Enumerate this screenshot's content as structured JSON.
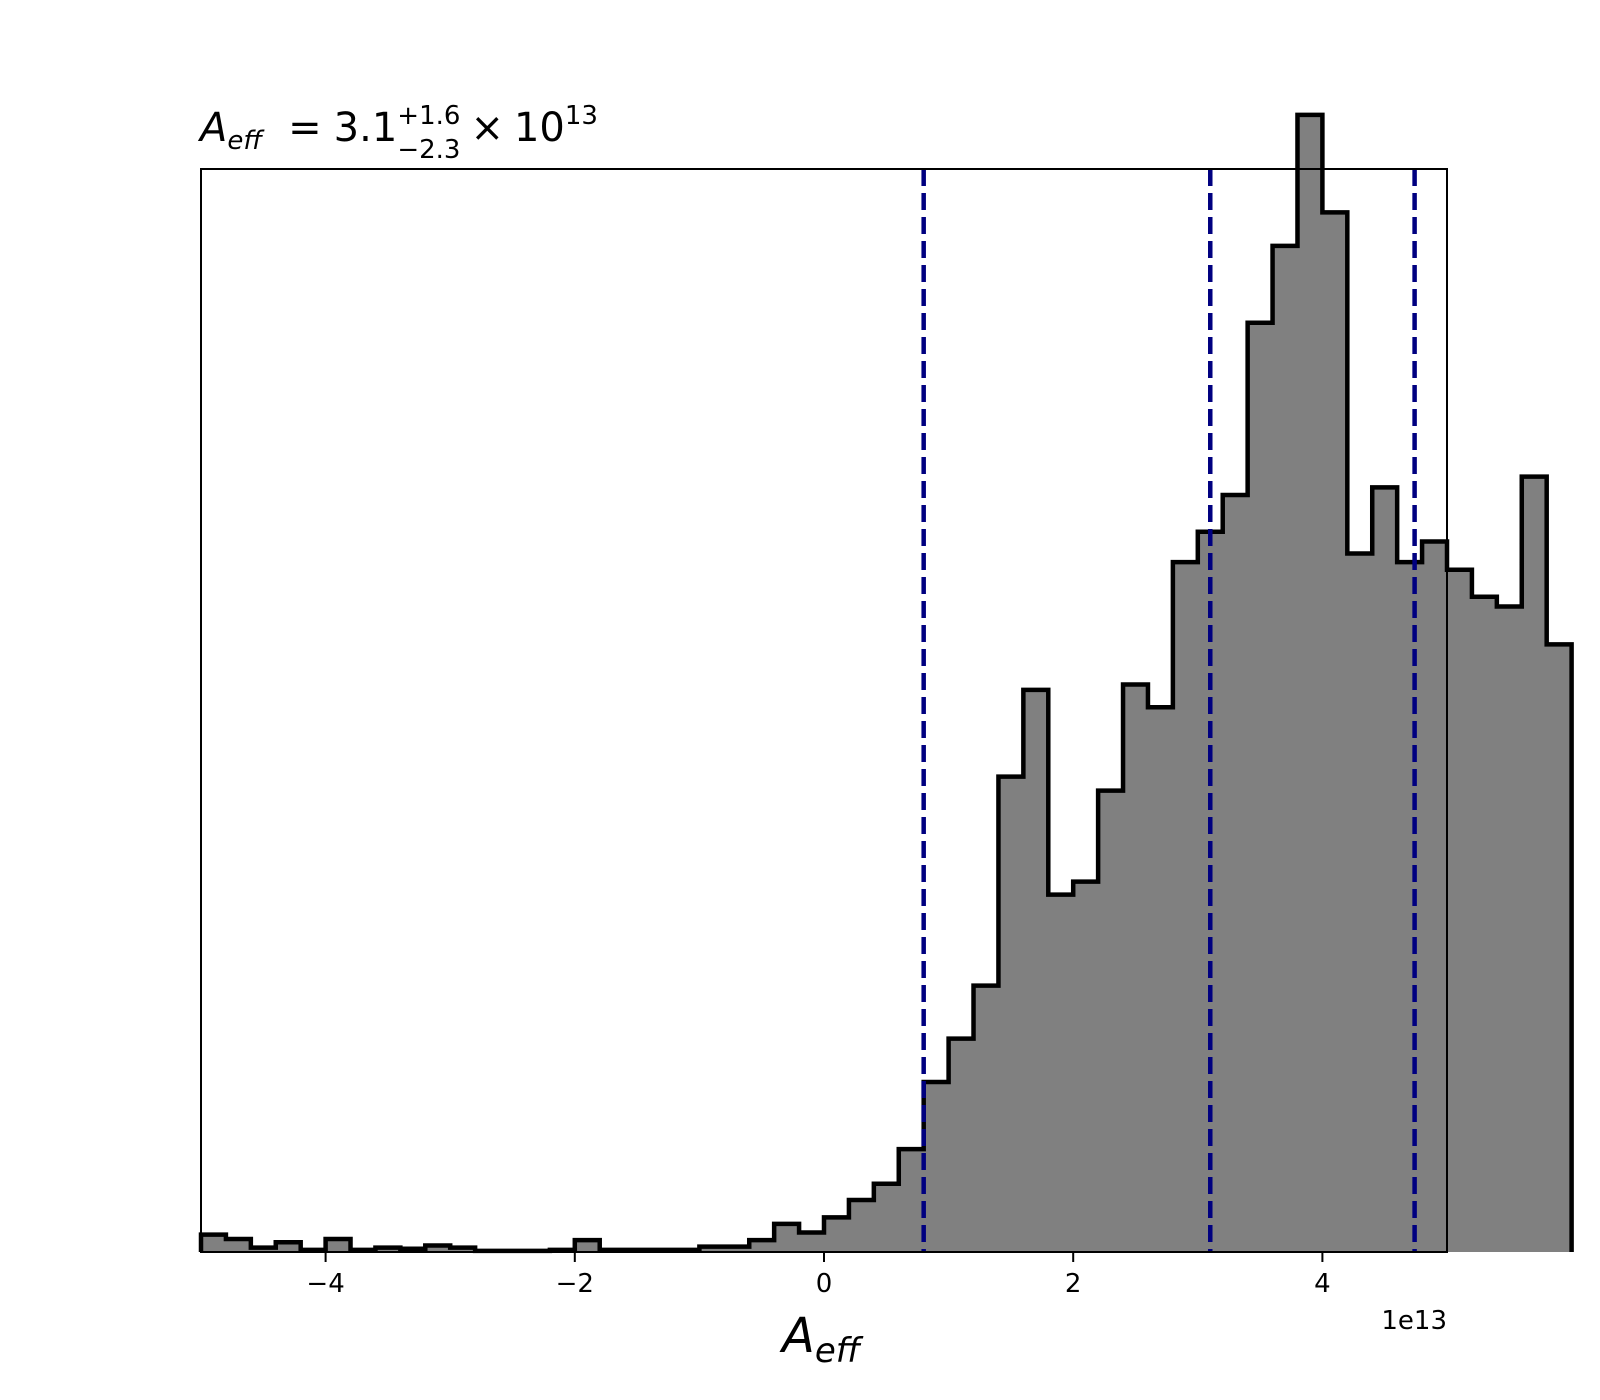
{
  "chart_data": {
    "type": "histogram",
    "title": {
      "symbol": "A",
      "symbol_sub": "eff",
      "equals": "=",
      "value": "3.1",
      "plus": "+1.6",
      "minus": "−2.3",
      "times": "×",
      "base": "10",
      "exponent": "13"
    },
    "xlabel": {
      "symbol": "A",
      "symbol_sub": "eff"
    },
    "ylabel": "",
    "xlim": [
      -5.0,
      5.0
    ],
    "ylim": [
      0,
      1000
    ],
    "offset_label": "1e13",
    "x_scale": 10000000000000.0,
    "xticks": [
      {
        "value": -4,
        "label": "−4"
      },
      {
        "value": -2,
        "label": "−2"
      },
      {
        "value": 0,
        "label": "0"
      },
      {
        "value": 2,
        "label": "2"
      },
      {
        "value": 4,
        "label": "4"
      }
    ],
    "bin_width": 0.2,
    "bin_start": -5.0,
    "counts": [
      16,
      12,
      4,
      9,
      2,
      12,
      2,
      4,
      3,
      6,
      4,
      1,
      1,
      1,
      2,
      11,
      2,
      2,
      2,
      2,
      5,
      5,
      11,
      26,
      18,
      32,
      48,
      63,
      95,
      157,
      197,
      246,
      439,
      519,
      330,
      342,
      426,
      524,
      503,
      637,
      665,
      699,
      858,
      929,
      1050,
      960,
      645,
      706,
      637,
      656,
      630,
      605,
      596,
      716,
      561
    ],
    "intervals": [
      {
        "name": "lower",
        "x": 0.8
      },
      {
        "name": "median",
        "x": 3.1
      },
      {
        "name": "upper",
        "x": 4.74
      }
    ],
    "colors": {
      "fill": "#808080",
      "edge": "#000000",
      "interval": "#000080",
      "axes": "#000000"
    },
    "grid": false,
    "legend": "none"
  }
}
